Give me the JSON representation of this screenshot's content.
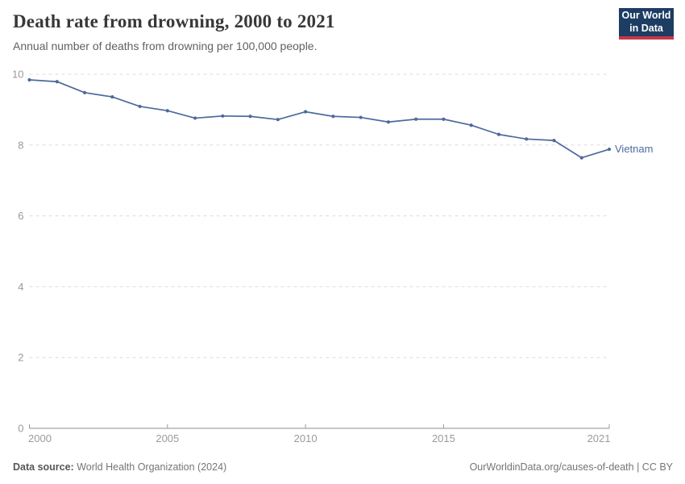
{
  "header": {
    "title": "Death rate from drowning, 2000 to 2021",
    "subtitle": "Annual number of deaths from drowning per 100,000 people.",
    "logo": {
      "line1": "Our World",
      "line2": "in Data",
      "bg_color": "#1d3d63",
      "accent_color": "#c93648"
    }
  },
  "chart_data": {
    "type": "line",
    "title": "Death rate from drowning, 2000 to 2021",
    "xlabel": "",
    "ylabel": "",
    "xlim": [
      2000,
      2021
    ],
    "ylim": [
      0,
      10
    ],
    "xticks": [
      2000,
      2005,
      2010,
      2015,
      2021
    ],
    "yticks": [
      0,
      2,
      4,
      6,
      8,
      10
    ],
    "grid": "horizontal-dashed",
    "legend_position": "end-of-line",
    "series": [
      {
        "name": "Vietnam",
        "color": "#4c6a9c",
        "x": [
          2000,
          2001,
          2002,
          2003,
          2004,
          2005,
          2006,
          2007,
          2008,
          2009,
          2010,
          2011,
          2012,
          2013,
          2014,
          2015,
          2016,
          2017,
          2018,
          2019,
          2020,
          2021
        ],
        "values": [
          9.84,
          9.79,
          9.48,
          9.36,
          9.09,
          8.97,
          8.76,
          8.82,
          8.81,
          8.72,
          8.94,
          8.81,
          8.78,
          8.65,
          8.73,
          8.73,
          8.56,
          8.3,
          8.17,
          8.13,
          7.64,
          7.88
        ]
      }
    ],
    "axis_colors": {
      "tick_label": "#9a9a9a",
      "grid_line": "#dcdcdc",
      "axis_line": "#8f8f8f"
    }
  },
  "footer": {
    "source_label": "Data source:",
    "source_value": " World Health Organization (2024)",
    "credit": "OurWorldinData.org/causes-of-death | CC BY"
  }
}
